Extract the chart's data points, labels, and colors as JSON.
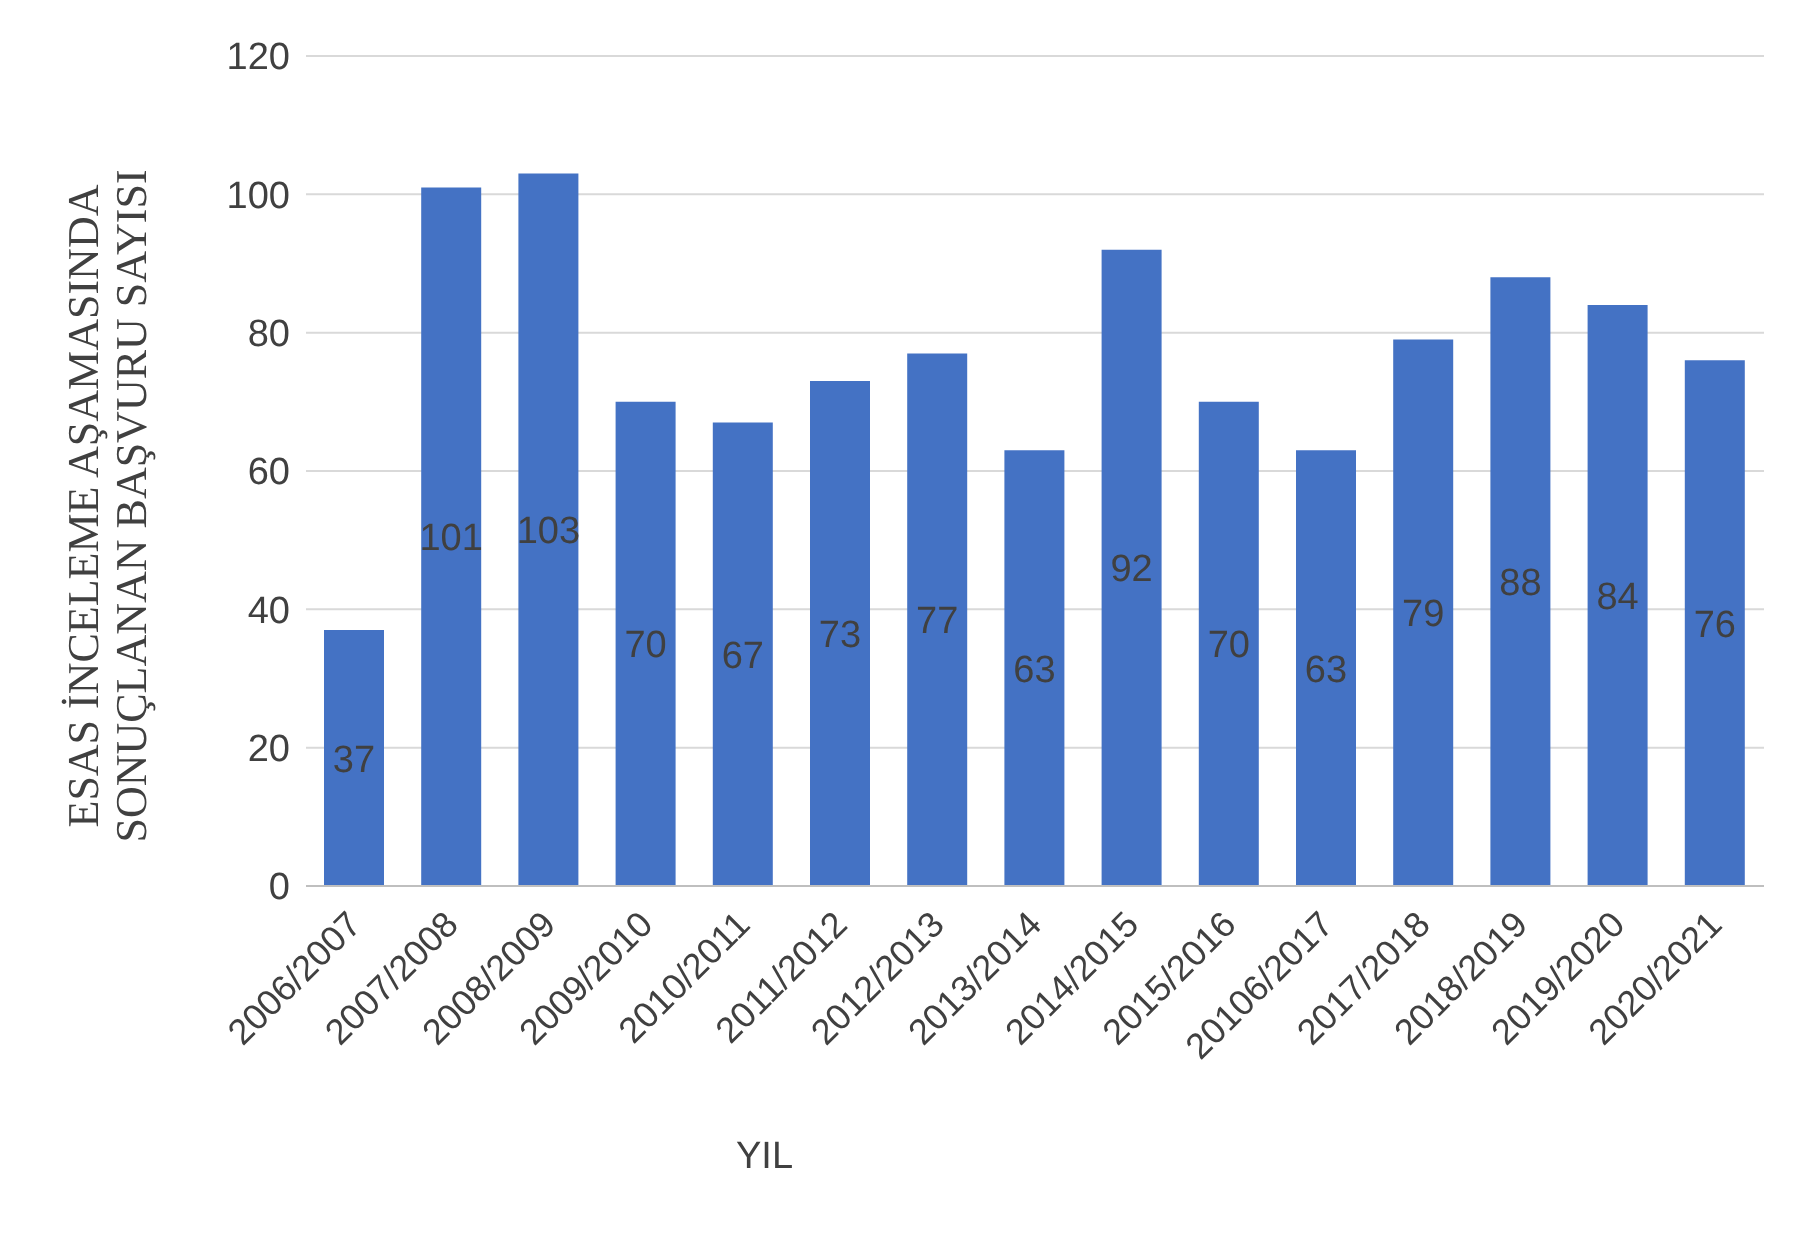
{
  "chart_data": {
    "type": "bar",
    "xlabel": "YIL",
    "ylabel": "ESAS İNCELEME AŞAMASINDA SONUÇLANAN BAŞVURU SAYISI",
    "categories": [
      "2006/2007",
      "2007/2008",
      "2008/2009",
      "2009/2010",
      "2010/2011",
      "2011/2012",
      "2012/2013",
      "2013/2014",
      "2014/2015",
      "2015/2016",
      "20106/2017",
      "2017/2018",
      "2018/2019",
      "2019/2020",
      "2020/2021"
    ],
    "values": [
      37,
      101,
      103,
      70,
      67,
      73,
      77,
      63,
      92,
      70,
      63,
      79,
      88,
      84,
      76
    ],
    "color": "#4472c4",
    "ylim": [
      0,
      120
    ],
    "yticks": [
      0,
      20,
      40,
      60,
      80,
      100,
      120
    ],
    "grid": "y",
    "data_labels": true
  }
}
